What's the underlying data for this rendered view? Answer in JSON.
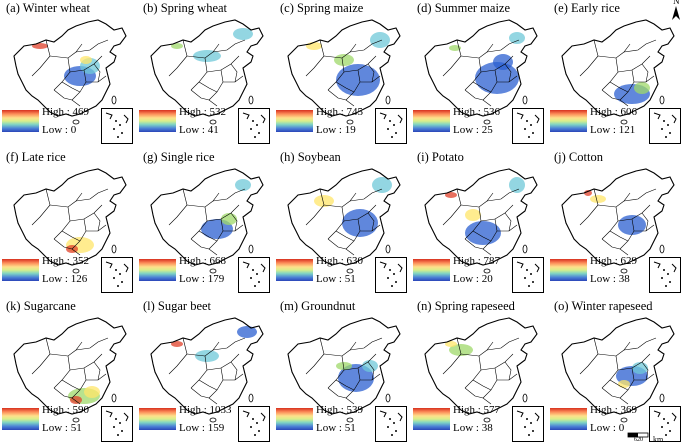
{
  "panels": [
    {
      "title": "(a) Winter wheat",
      "high": "High : 469",
      "low": "Low : 0"
    },
    {
      "title": "(b) Spring wheat",
      "high": "High : 532",
      "low": "Low : 41"
    },
    {
      "title": "(c) Spring maize",
      "high": "High : 745",
      "low": "Low : 19"
    },
    {
      "title": "(d) Summer maize",
      "high": "High : 536",
      "low": "Low : 25"
    },
    {
      "title": "(e) Early rice",
      "high": "High : 606",
      "low": "Low : 121"
    },
    {
      "title": "(f) Late rice",
      "high": "High : 352",
      "low": "Low : 126"
    },
    {
      "title": "(g) Single rice",
      "high": "High : 668",
      "low": "Low : 179"
    },
    {
      "title": "(h) Soybean",
      "high": "High : 630",
      "low": "Low : 51"
    },
    {
      "title": "(i) Potato",
      "high": "High : 787",
      "low": "Low : 20"
    },
    {
      "title": "(j) Cotton",
      "high": "High : 629",
      "low": "Low : 38"
    },
    {
      "title": "(k) Sugarcane",
      "high": "High : 590",
      "low": "Low : 51"
    },
    {
      "title": "(l) Sugar beet",
      "high": "High : 1033",
      "low": "Low : 159"
    },
    {
      "title": "(m) Groundnut",
      "high": "High : 539",
      "low": "Low : 51"
    },
    {
      "title": "(n) Spring rapeseed",
      "high": "High : 577",
      "low": "Low : 38"
    },
    {
      "title": "(o) Winter rapeseed",
      "high": "High : 369",
      "low": "Low : 0"
    }
  ],
  "north_label": "N",
  "scale": {
    "distance": "620",
    "unit": "km"
  }
}
